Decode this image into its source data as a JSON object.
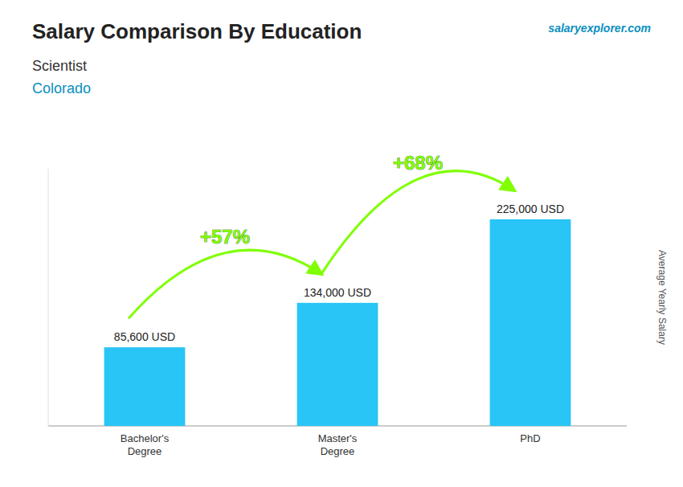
{
  "chart_data": {
    "type": "bar",
    "title": "Salary Comparison By Education",
    "subtitle": "Scientist",
    "subtitle2": "Colorado",
    "source": "salaryexplorer.com",
    "ylabel": "Average Yearly Salary",
    "categories": [
      "Bachelor's\nDegree",
      "Master's\nDegree",
      "PhD"
    ],
    "values": [
      85600,
      134000,
      225000
    ],
    "value_labels": [
      "85,600 USD",
      "134,000 USD",
      "225,000 USD"
    ],
    "data_labels": true,
    "color": "#29c5f6",
    "annotations": [
      {
        "text": "+57%",
        "color": "#7fff00"
      },
      {
        "text": "+68%",
        "color": "#7fff00"
      }
    ],
    "ylim": [
      0,
      280000
    ],
    "tick_labels": "x",
    "grid": false
  }
}
